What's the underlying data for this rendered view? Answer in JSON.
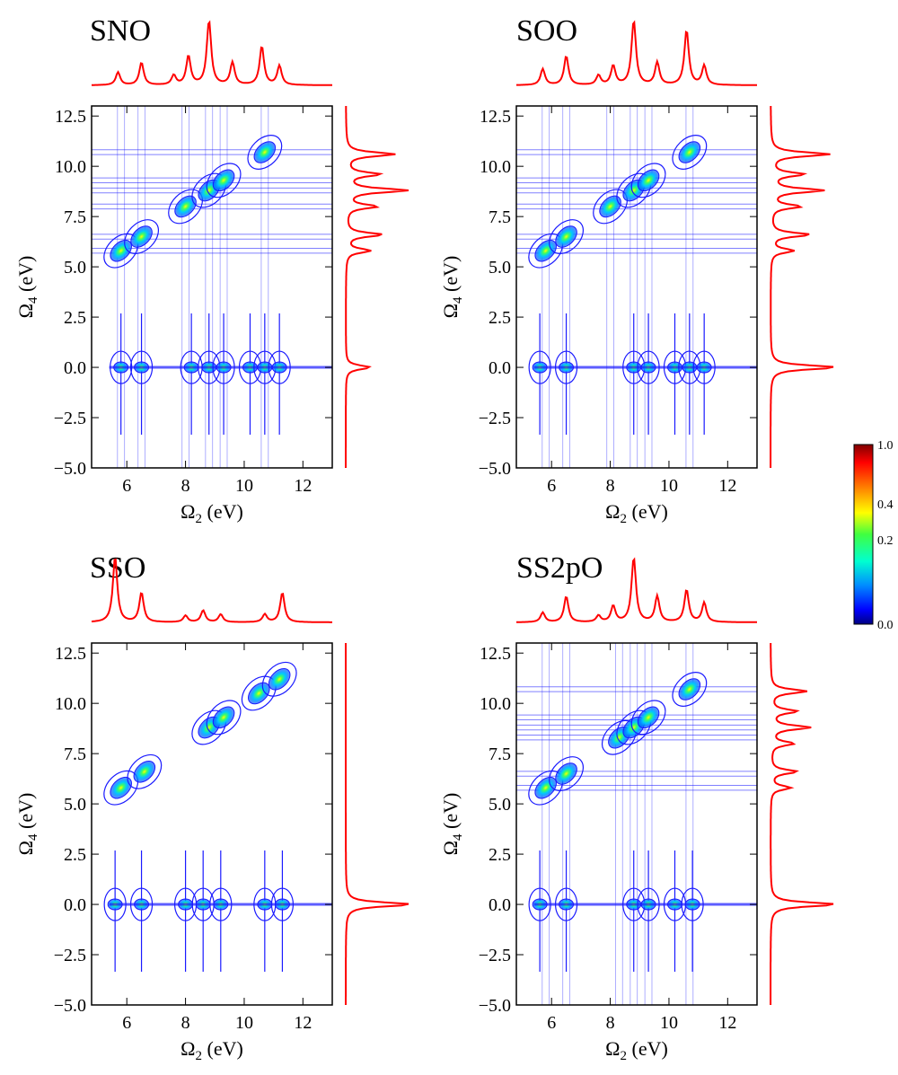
{
  "figure": {
    "x_axis_label_text": "(eV)",
    "y_axis_label_text": "(eV)",
    "x_symbol": "Ω",
    "x_subscript": "2",
    "y_symbol": "Ω",
    "y_subscript": "4",
    "spectrum_color": "#ff0000",
    "contour_color": "#1a1aff"
  },
  "colorbar": {
    "tick_labels": [
      "1.0",
      "0.4",
      "0.2",
      "0.0"
    ],
    "tick_values": [
      1.0,
      0.4,
      0.2,
      0.0
    ],
    "colors": [
      "#000080",
      "#0000ff",
      "#00a0ff",
      "#00ffd0",
      "#40ff40",
      "#ffff00",
      "#ff8000",
      "#ff0000",
      "#800000"
    ]
  },
  "chart_data": [
    {
      "type": "heatmap",
      "title": "SNO",
      "xlabel": "Ω2 (eV)",
      "ylabel": "Ω4 (eV)",
      "xlim": [
        4.8,
        13
      ],
      "ylim": [
        -5,
        13
      ],
      "xticks": [
        6,
        8,
        10,
        12
      ],
      "xtick_labels": [
        "6",
        "8",
        "10",
        "12"
      ],
      "yticks": [
        -5,
        -2.5,
        0,
        2.5,
        5,
        7.5,
        10,
        12.5
      ],
      "ytick_labels": [
        "−5.0",
        "−2.5",
        "0.0",
        "2.5",
        "5.0",
        "7.5",
        "10.0",
        "12.5"
      ],
      "diagonal_peaks": [
        5.8,
        6.5,
        8.0,
        8.8,
        9.3,
        10.7
      ],
      "zero_axis_peaks": [
        5.8,
        6.5,
        8.2,
        8.8,
        9.3,
        10.2,
        10.7,
        11.2
      ],
      "top_spectrum": {
        "x": [
          5.7,
          6.5,
          7.6,
          8.1,
          8.8,
          9.6,
          10.6,
          11.2
        ],
        "y": [
          0.2,
          0.35,
          0.15,
          0.45,
          1.0,
          0.35,
          0.6,
          0.3
        ]
      },
      "side_spectrum": {
        "y": [
          0.0,
          5.8,
          6.6,
          8.0,
          8.8,
          9.6,
          10.6
        ],
        "x": [
          0.4,
          0.4,
          0.6,
          0.5,
          1.0,
          0.55,
          0.8
        ]
      }
    },
    {
      "type": "heatmap",
      "title": "SOO",
      "xlabel": "Ω2 (eV)",
      "ylabel": "Ω4 (eV)",
      "xlim": [
        4.8,
        13
      ],
      "ylim": [
        -5,
        13
      ],
      "xticks": [
        6,
        8,
        10,
        12
      ],
      "xtick_labels": [
        "6",
        "8",
        "10",
        "12"
      ],
      "yticks": [
        -5,
        -2.5,
        0,
        2.5,
        5,
        7.5,
        10,
        12.5
      ],
      "ytick_labels": [
        "−5.0",
        "−2.5",
        "0.0",
        "2.5",
        "5.0",
        "7.5",
        "10.0",
        "12.5"
      ],
      "diagonal_peaks": [
        5.8,
        6.5,
        8.0,
        8.8,
        9.3,
        10.7
      ],
      "zero_axis_peaks": [
        5.6,
        6.5,
        8.8,
        9.3,
        10.2,
        10.7,
        11.2
      ],
      "top_spectrum": {
        "x": [
          5.7,
          6.5,
          7.6,
          8.1,
          8.8,
          9.6,
          10.6,
          11.2
        ],
        "y": [
          0.25,
          0.45,
          0.15,
          0.3,
          1.0,
          0.35,
          0.85,
          0.3
        ]
      },
      "side_spectrum": {
        "y": [
          0.0,
          5.8,
          6.6,
          8.0,
          8.8,
          9.6,
          10.6
        ],
        "x": [
          1.0,
          0.35,
          0.6,
          0.45,
          0.8,
          0.5,
          0.9
        ]
      }
    },
    {
      "type": "heatmap",
      "title": "SSO",
      "xlabel": "Ω2 (eV)",
      "ylabel": "Ω4 (eV)",
      "xlim": [
        4.8,
        13
      ],
      "ylim": [
        -5,
        13
      ],
      "xticks": [
        6,
        8,
        10,
        12
      ],
      "xtick_labels": [
        "6",
        "8",
        "10",
        "12"
      ],
      "yticks": [
        -5,
        -2.5,
        0,
        2.5,
        5,
        7.5,
        10,
        12.5
      ],
      "ytick_labels": [
        "−5.0",
        "−2.5",
        "0.0",
        "2.5",
        "5.0",
        "7.5",
        "10.0",
        "12.5"
      ],
      "diagonal_peaks": [
        5.8,
        6.6,
        8.8,
        9.3,
        10.5,
        11.2
      ],
      "zero_axis_peaks": [
        5.6,
        6.5,
        8.0,
        8.6,
        9.2,
        10.7,
        11.3
      ],
      "top_spectrum": {
        "x": [
          5.6,
          6.5,
          8.0,
          8.6,
          9.2,
          10.7,
          11.3
        ],
        "y": [
          1.0,
          0.45,
          0.1,
          0.18,
          0.12,
          0.12,
          0.45
        ]
      },
      "side_spectrum": {
        "y": [
          0.0
        ],
        "x": [
          1.0
        ]
      }
    },
    {
      "type": "heatmap",
      "title": "SS2pO",
      "xlabel": "Ω2 (eV)",
      "ylabel": "Ω4 (eV)",
      "xlim": [
        4.8,
        13
      ],
      "ylim": [
        -5,
        13
      ],
      "xticks": [
        6,
        8,
        10,
        12
      ],
      "xtick_labels": [
        "6",
        "8",
        "10",
        "12"
      ],
      "yticks": [
        -5,
        -2.5,
        0,
        2.5,
        5,
        7.5,
        10,
        12.5
      ],
      "ytick_labels": [
        "−5.0",
        "−2.5",
        "0.0",
        "2.5",
        "5.0",
        "7.5",
        "10.0",
        "12.5"
      ],
      "diagonal_peaks": [
        5.8,
        6.5,
        8.3,
        8.8,
        9.3,
        10.7
      ],
      "zero_axis_peaks": [
        5.6,
        6.5,
        8.8,
        9.3,
        10.2,
        10.8
      ],
      "top_spectrum": {
        "x": [
          5.7,
          6.5,
          7.6,
          8.1,
          8.8,
          9.6,
          10.6,
          11.2
        ],
        "y": [
          0.15,
          0.4,
          0.1,
          0.25,
          1.0,
          0.4,
          0.5,
          0.3
        ]
      },
      "side_spectrum": {
        "y": [
          0.0,
          5.8,
          6.6,
          8.0,
          8.8,
          9.6,
          10.6
        ],
        "x": [
          1.0,
          0.3,
          0.4,
          0.35,
          0.6,
          0.4,
          0.55
        ]
      }
    }
  ]
}
